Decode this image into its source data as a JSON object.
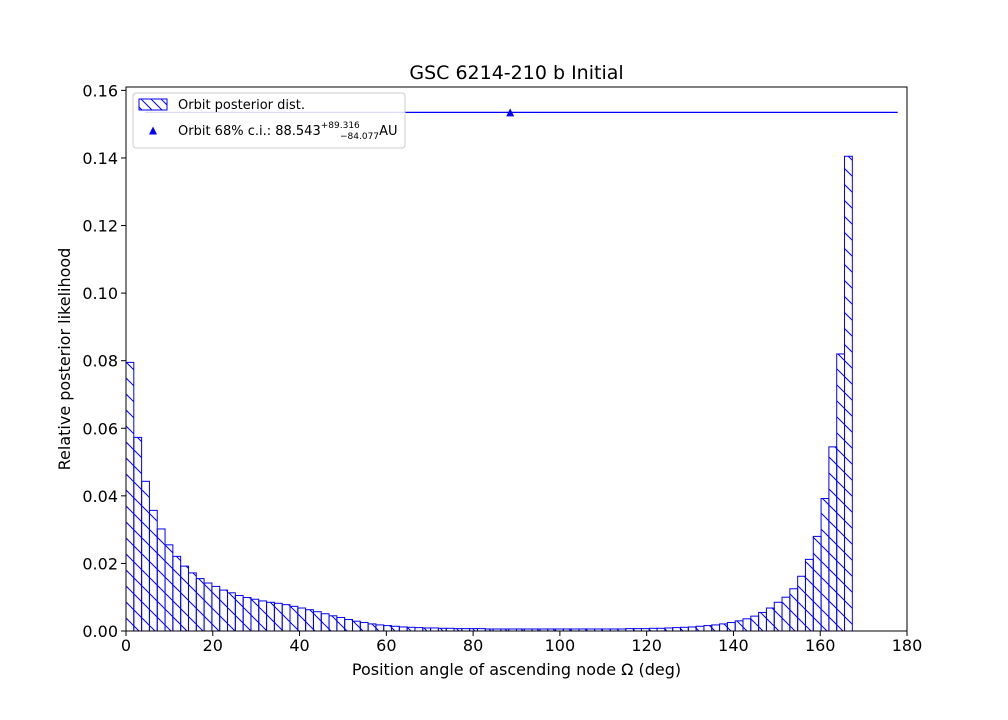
{
  "chart_data": {
    "type": "bar",
    "title": "GSC 6214-210 b Initial",
    "xlabel": "Position angle of ascending node Ω (deg)",
    "ylabel": "Relative posterior likelihood",
    "xlim": [
      0,
      180
    ],
    "ylim": [
      0,
      0.161
    ],
    "xticks": [
      0,
      20,
      40,
      60,
      80,
      100,
      120,
      140,
      160,
      180
    ],
    "yticks": [
      0.0,
      0.02,
      0.04,
      0.06,
      0.08,
      0.1,
      0.12,
      0.14,
      0.16
    ],
    "ytick_labels": [
      "0.00",
      "0.02",
      "0.04",
      "0.06",
      "0.08",
      "0.10",
      "0.12",
      "0.14",
      "0.16"
    ],
    "bin_width": 1.8,
    "bin_start": 0,
    "series": [
      {
        "name": "Orbit posterior dist.",
        "color": "#0000ff",
        "hatch": "diagonal",
        "values": [
          0.0795,
          0.0573,
          0.0443,
          0.0357,
          0.0302,
          0.0255,
          0.0221,
          0.0192,
          0.0172,
          0.0155,
          0.0142,
          0.0132,
          0.0121,
          0.0113,
          0.0105,
          0.0099,
          0.0094,
          0.0089,
          0.0085,
          0.0082,
          0.0078,
          0.0073,
          0.0068,
          0.0063,
          0.0057,
          0.0051,
          0.0045,
          0.004,
          0.0034,
          0.0029,
          0.0025,
          0.0021,
          0.0018,
          0.0016,
          0.0014,
          0.0012,
          0.0011,
          0.001,
          0.0009,
          0.0009,
          0.0008,
          0.0008,
          0.0007,
          0.0007,
          0.0007,
          0.0007,
          0.0006,
          0.0006,
          0.0006,
          0.0006,
          0.0006,
          0.0006,
          0.0006,
          0.0006,
          0.0006,
          0.0006,
          0.0006,
          0.0006,
          0.0006,
          0.0006,
          0.0006,
          0.0006,
          0.0006,
          0.0006,
          0.0007,
          0.0007,
          0.0007,
          0.0008,
          0.0008,
          0.0009,
          0.001,
          0.0011,
          0.0012,
          0.0014,
          0.0016,
          0.0018,
          0.0021,
          0.0025,
          0.003,
          0.0036,
          0.0044,
          0.0055,
          0.0068,
          0.0085,
          0.01,
          0.0125,
          0.0162,
          0.0212,
          0.028,
          0.0392,
          0.0545,
          0.082,
          0.1405
        ]
      }
    ],
    "ci": {
      "name": "Orbit 68% c.i.",
      "median": 88.543,
      "low": 4.466,
      "high": 177.859,
      "y": 0.1535,
      "color": "#0000ff"
    },
    "legend": {
      "position": "upper-left",
      "entry1": "Orbit posterior dist.",
      "entry2_prefix": "Orbit 68% c.i.: 88.543",
      "entry2_sup": "+89.316",
      "entry2_sub": "−84.077",
      "entry2_suffix": " AU"
    }
  }
}
